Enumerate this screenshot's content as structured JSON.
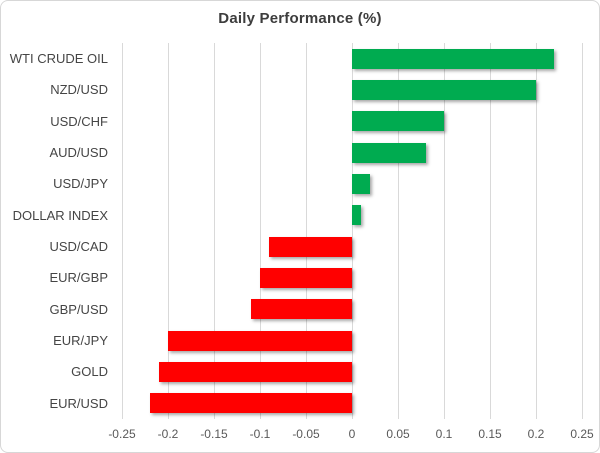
{
  "chart": {
    "title": "Daily Performance (%)"
  },
  "chart_data": {
    "type": "bar",
    "orientation": "horizontal",
    "title": "Daily Performance (%)",
    "xlabel": "",
    "ylabel": "",
    "categories": [
      "WTI CRUDE OIL",
      "NZD/USD",
      "USD/CHF",
      "AUD/USD",
      "USD/JPY",
      "DOLLAR INDEX",
      "USD/CAD",
      "EUR/GBP",
      "GBP/USD",
      "EUR/JPY",
      "GOLD",
      "EUR/USD"
    ],
    "values": [
      0.22,
      0.2,
      0.1,
      0.08,
      0.02,
      0.01,
      -0.09,
      -0.1,
      -0.11,
      -0.2,
      -0.21,
      -0.22
    ],
    "xlim": [
      -0.25,
      0.25
    ],
    "xticks": [
      -0.25,
      -0.2,
      -0.15,
      -0.1,
      -0.05,
      0,
      0.05,
      0.1,
      0.15,
      0.2,
      0.25
    ],
    "xtick_labels": [
      "-0.25",
      "-0.2",
      "-0.15",
      "-0.1",
      "-0.05",
      "0",
      "0.05",
      "0.1",
      "0.15",
      "0.2",
      "0.25"
    ],
    "grid": true,
    "legend": false,
    "colors": {
      "positive": "#00ab50",
      "negative": "#ff0000",
      "gridline": "#d9d9d9",
      "title_text": "#3d3d3d",
      "label_text": "#454545",
      "tick_text": "#595959",
      "border": "#d7d7d7"
    }
  }
}
